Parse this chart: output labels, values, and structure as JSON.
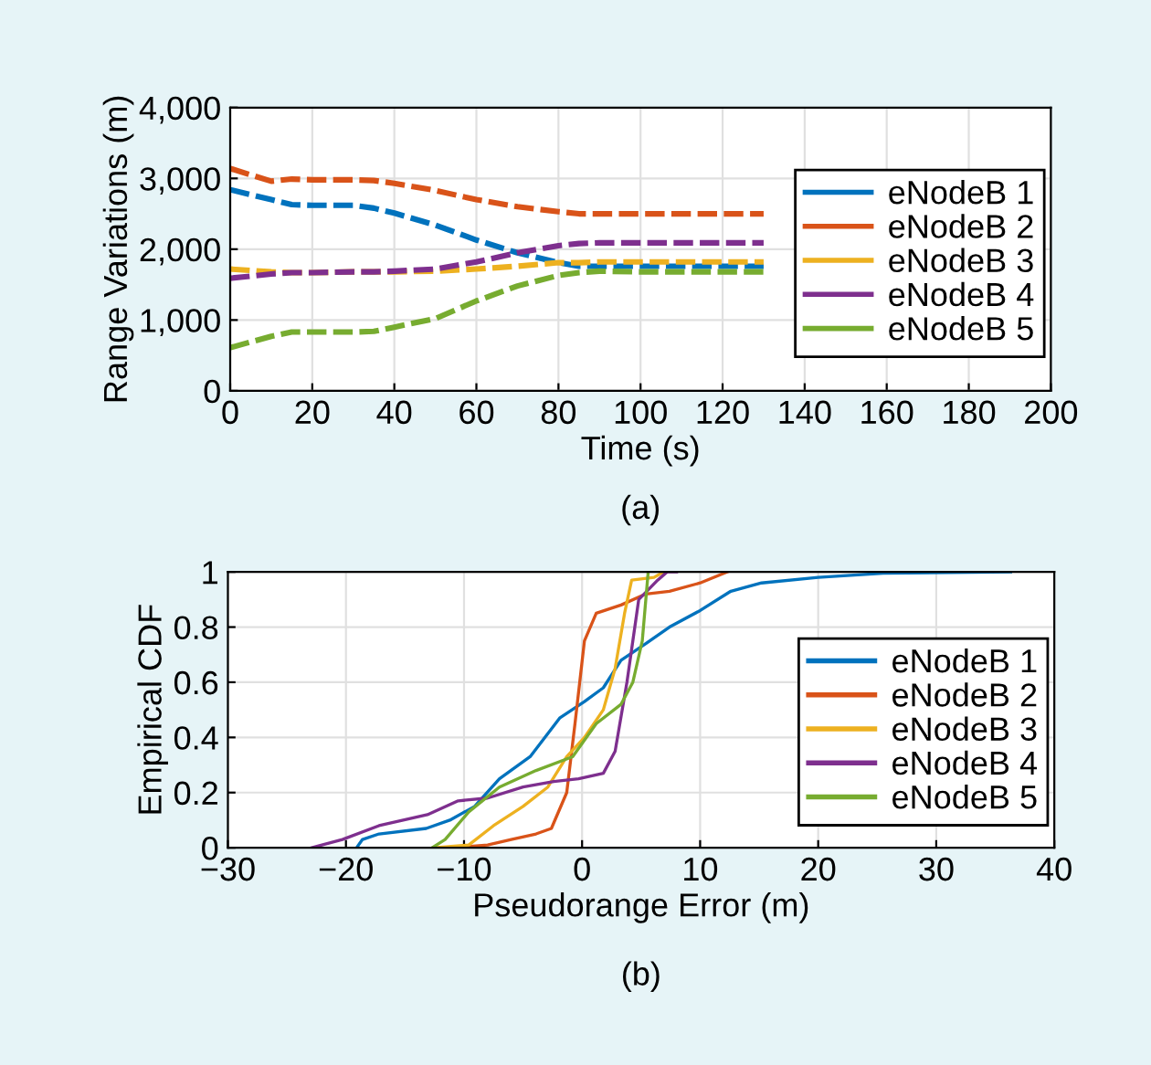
{
  "chart_data": [
    {
      "type": "line",
      "xlabel": "Time (s)",
      "ylabel": "Range Variations (m)",
      "annotations": [
        "(a)"
      ],
      "xlim": [
        0,
        200
      ],
      "xticks": [
        0,
        20,
        40,
        60,
        80,
        100,
        120,
        140,
        160,
        180,
        200
      ],
      "ylim": [
        0,
        4000
      ],
      "yticks": [
        0,
        {
          "value": 1000,
          "label": "1,000"
        },
        {
          "value": 2000,
          "label": "2,000"
        },
        {
          "value": 3000,
          "label": "3,000"
        },
        {
          "value": 4000,
          "label": "4,000"
        }
      ],
      "grid": true,
      "legend": "right",
      "line_style": "dashed",
      "x": [
        0,
        10,
        15,
        20,
        30,
        35,
        40,
        50,
        60,
        70,
        80,
        85,
        90,
        100,
        110,
        120,
        130
      ],
      "series": [
        {
          "name": "eNodeB 1",
          "color": "#0072bd",
          "values": [
            2840,
            2700,
            2630,
            2620,
            2620,
            2580,
            2510,
            2340,
            2130,
            1950,
            1810,
            1760,
            1760,
            1760,
            1760,
            1760,
            1760
          ]
        },
        {
          "name": "eNodeB 2",
          "color": "#d95319",
          "values": [
            3140,
            2960,
            2990,
            2980,
            2980,
            2970,
            2930,
            2830,
            2700,
            2600,
            2530,
            2500,
            2500,
            2500,
            2500,
            2500,
            2500
          ]
        },
        {
          "name": "eNodeB 3",
          "color": "#edb120",
          "values": [
            1720,
            1680,
            1670,
            1670,
            1680,
            1680,
            1680,
            1690,
            1720,
            1760,
            1810,
            1810,
            1820,
            1820,
            1820,
            1820,
            1820
          ]
        },
        {
          "name": "eNodeB 4",
          "color": "#7e2f8e",
          "values": [
            1590,
            1650,
            1670,
            1670,
            1680,
            1680,
            1690,
            1720,
            1820,
            1950,
            2050,
            2080,
            2090,
            2090,
            2090,
            2090,
            2090
          ]
        },
        {
          "name": "eNodeB 5",
          "color": "#77ac30",
          "values": [
            610,
            770,
            830,
            830,
            830,
            840,
            900,
            1020,
            1270,
            1480,
            1630,
            1670,
            1690,
            1680,
            1680,
            1680,
            1680
          ]
        }
      ]
    },
    {
      "type": "line",
      "xlabel": "Pseudorange Error (m)",
      "ylabel": "Empirical CDF",
      "annotations": [
        "(b)"
      ],
      "xlim": [
        -30,
        40
      ],
      "xticks": [
        {
          "value": -30,
          "label": "−30"
        },
        {
          "value": -20,
          "label": "−20"
        },
        {
          "value": -10,
          "label": "−10"
        },
        0,
        10,
        20,
        30,
        40
      ],
      "ylim": [
        0,
        1
      ],
      "yticks": [
        0,
        0.2,
        0.4,
        0.6,
        0.8,
        1
      ],
      "grid": true,
      "legend": "right",
      "series": [
        {
          "name": "eNodeB 1",
          "color": "#0072bd",
          "x": [
            -19.1,
            -18.6,
            -17.2,
            -13.2,
            -11.2,
            -9.1,
            -7,
            -4.4,
            -1.9,
            0.2,
            1.8,
            3.3,
            5.4,
            7.4,
            10,
            12.6,
            15.2,
            20,
            25.5,
            36.3
          ],
          "values": [
            0,
            0.03,
            0.05,
            0.07,
            0.1,
            0.15,
            0.25,
            0.33,
            0.47,
            0.53,
            0.58,
            0.68,
            0.74,
            0.8,
            0.86,
            0.93,
            0.96,
            0.98,
            0.995,
            1
          ]
        },
        {
          "name": "eNodeB 2",
          "color": "#d95319",
          "x": [
            -11.1,
            -8,
            -6,
            -3.9,
            -2.6,
            -1.3,
            -0.6,
            0.2,
            1.2,
            3.3,
            5.4,
            7.4,
            10,
            12.3
          ],
          "values": [
            0,
            0.01,
            0.03,
            0.05,
            0.07,
            0.2,
            0.45,
            0.75,
            0.85,
            0.88,
            0.92,
            0.93,
            0.96,
            1
          ]
        },
        {
          "name": "eNodeB 3",
          "color": "#edb120",
          "x": [
            -12.6,
            -9.6,
            -7.5,
            -5,
            -2.9,
            -1.3,
            0.2,
            1.8,
            2.8,
            3.6,
            4.2,
            6.1,
            6.9
          ],
          "values": [
            0,
            0.01,
            0.08,
            0.15,
            0.22,
            0.33,
            0.4,
            0.5,
            0.65,
            0.85,
            0.97,
            0.98,
            1
          ]
        },
        {
          "name": "eNodeB 4",
          "color": "#7e2f8e",
          "x": [
            -22.9,
            -20.3,
            -17.2,
            -13.1,
            -10.5,
            -8,
            -5,
            -2.4,
            -0.3,
            1.8,
            2.8,
            3.8,
            4.8,
            6.4,
            7.2,
            8
          ],
          "values": [
            0,
            0.03,
            0.08,
            0.12,
            0.17,
            0.18,
            0.22,
            0.24,
            0.25,
            0.27,
            0.35,
            0.6,
            0.9,
            0.97,
            1,
            1
          ]
        },
        {
          "name": "eNodeB 5",
          "color": "#77ac30",
          "x": [
            -12.7,
            -11.6,
            -9.6,
            -7,
            -3.9,
            -0.8,
            1.2,
            3.3,
            4.3,
            5.1,
            5.6
          ],
          "values": [
            0,
            0.03,
            0.13,
            0.22,
            0.28,
            0.33,
            0.45,
            0.52,
            0.6,
            0.75,
            1
          ]
        }
      ]
    }
  ]
}
